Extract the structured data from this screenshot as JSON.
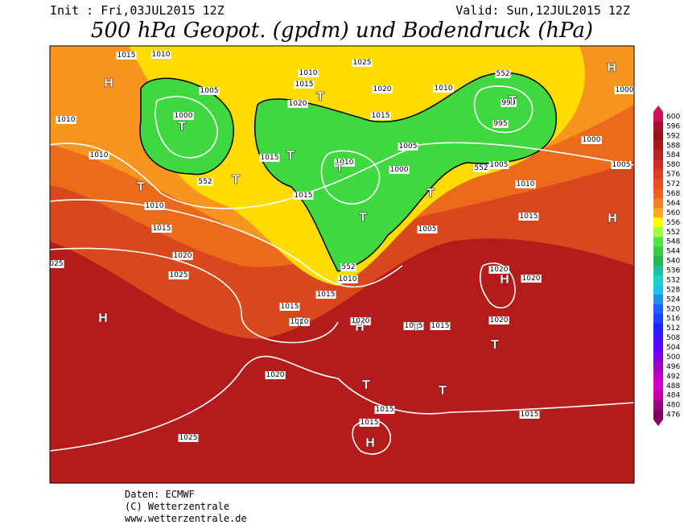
{
  "header": {
    "init": "Init : Fri,03JUL2015 12Z",
    "valid": "Valid: Sun,12JUL2015 12Z",
    "title": "500 hPa Geopot. (gpdm) und Bodendruck (hPa)"
  },
  "legend": {
    "levels": [
      600,
      596,
      592,
      588,
      584,
      580,
      576,
      572,
      568,
      564,
      560,
      556,
      552,
      548,
      544,
      540,
      536,
      532,
      528,
      524,
      520,
      516,
      512,
      508,
      504,
      500,
      496,
      492,
      488,
      484,
      480,
      476
    ],
    "colors": [
      "#d0105a",
      "#a81028",
      "#9c1018",
      "#ac1818",
      "#bc2020",
      "#cc3020",
      "#dc4020",
      "#e85020",
      "#f06020",
      "#f88020",
      "#ffa820",
      "#ffff00",
      "#a0ff40",
      "#50e840",
      "#30d040",
      "#20b850",
      "#20c0a0",
      "#20d0c8",
      "#20c0e8",
      "#2090f0",
      "#2060ff",
      "#2040ff",
      "#2020ff",
      "#4010ff",
      "#6000ff",
      "#8000e0",
      "#a000c8",
      "#c000c0",
      "#d000d0",
      "#c000a0",
      "#a00080",
      "#800060"
    ]
  },
  "map": {
    "isobar_labels": [
      "1015",
      "1010",
      "1025",
      "1010",
      "1015",
      "1005",
      "1020",
      "1010",
      "1000",
      "1010",
      "1000",
      "1020",
      "1015",
      "990",
      "995",
      "1010",
      "1015",
      "1010",
      "1005",
      "1000",
      "1005",
      "1000",
      "1005",
      "1010",
      "1015",
      "1010",
      "1015",
      "1015",
      "1005",
      "1020",
      "025",
      "1025",
      "1020",
      "1020",
      "1010",
      "1015",
      "1015",
      "1010",
      "1020",
      "1015",
      "1015",
      "1020",
      "1020",
      "1015",
      "1015",
      "1015",
      "1025",
      "552",
      "552",
      "552",
      "552"
    ],
    "pressure_centers": [
      "H",
      "H",
      "T",
      "T",
      "T",
      "T",
      "T",
      "T",
      "T",
      "T",
      "T",
      "H",
      "H",
      "H",
      "T",
      "H",
      "T",
      "T",
      "T",
      "T",
      "H"
    ]
  },
  "footer": {
    "lines": [
      "Daten: ECMWF",
      "(C) Wetterzentrale",
      "www.wetterzentrale.de"
    ]
  }
}
